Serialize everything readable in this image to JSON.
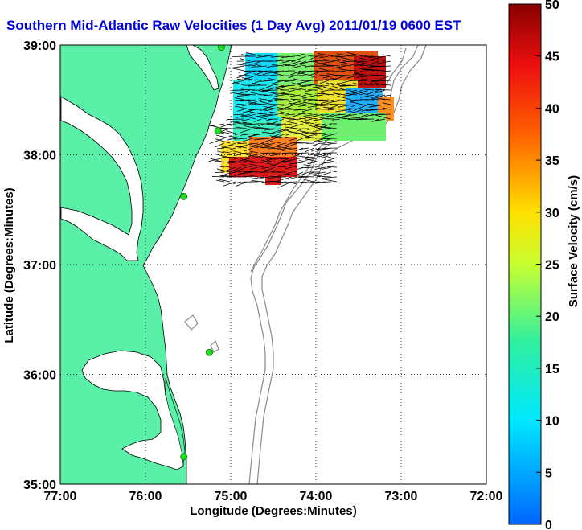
{
  "title": "Southern Mid-Atlantic Raw Velocities (1 Day Avg) 2011/01/19 0600 EST",
  "xlabel": "Longitude (Degrees:Minutes)",
  "ylabel": "Latitude (Degrees:Minutes)",
  "colorbar": {
    "label": "Surface Velocity (cm/s)",
    "ticks": [
      "50",
      "45",
      "40",
      "35",
      "30",
      "25",
      "20",
      "15",
      "10",
      "5",
      "0"
    ],
    "range": [
      0,
      50
    ]
  },
  "map": {
    "lon_ticks": [
      "77:00",
      "76:00",
      "75:00",
      "74:00",
      "73:00",
      "72:00"
    ],
    "lat_ticks": [
      "39:00",
      "38:00",
      "37:00",
      "36:00",
      "35:00"
    ],
    "lon_range": [
      -77,
      -72
    ],
    "lat_range": [
      35,
      39
    ],
    "grid": "dotted",
    "colors": {
      "land": "#5af0a8",
      "ocean": "#ffffff",
      "isobath": "#8a8a8a",
      "station": "#22dd22",
      "title": "#0000dd"
    },
    "stations": [
      {
        "lon": -75.11,
        "lat": 38.98
      },
      {
        "lon": -75.15,
        "lat": 38.22
      },
      {
        "lon": -75.55,
        "lat": 37.62
      },
      {
        "lon": -75.25,
        "lat": 36.2
      },
      {
        "lon": -75.55,
        "lat": 35.25
      }
    ]
  }
}
